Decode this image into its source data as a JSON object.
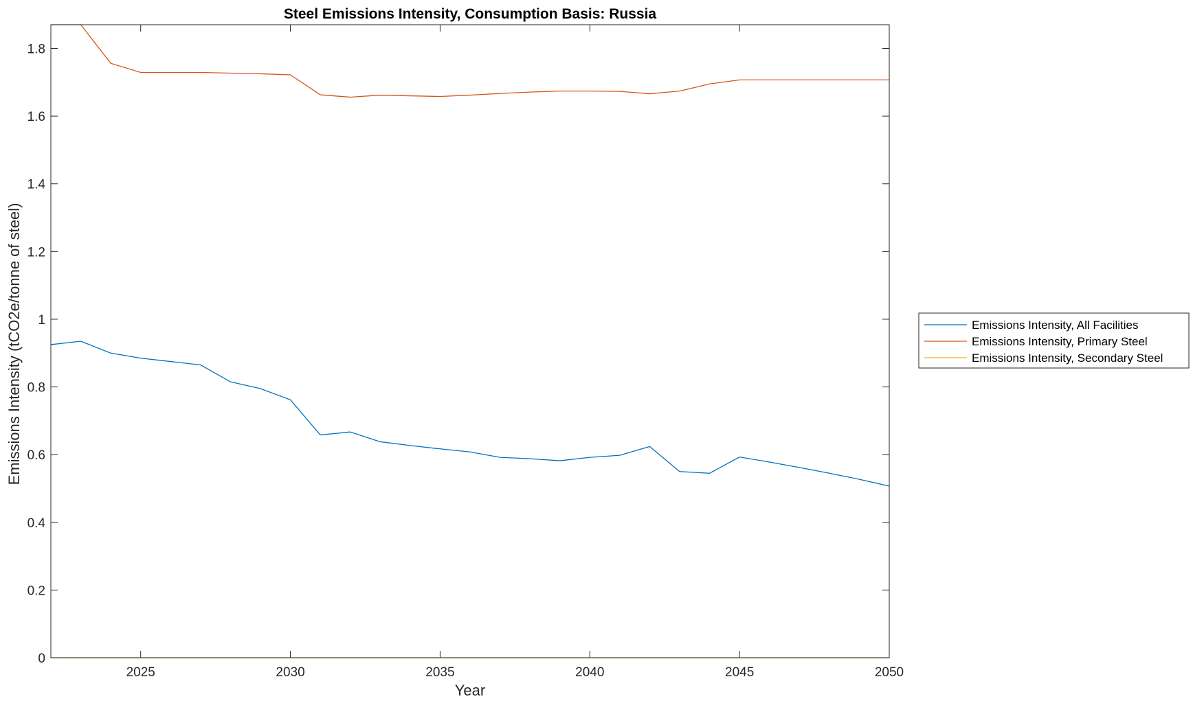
{
  "chart_data": {
    "type": "line",
    "title": "Steel Emissions Intensity, Consumption Basis: Russia",
    "xlabel": "Year",
    "ylabel": "Emissions Intensity (tCO2e/tonne of steel)",
    "xlim": [
      2022,
      2050
    ],
    "ylim": [
      0,
      1.87
    ],
    "xticks": [
      2025,
      2030,
      2035,
      2040,
      2045,
      2050
    ],
    "yticks": [
      0,
      0.2,
      0.4,
      0.6,
      0.8,
      1,
      1.2,
      1.4,
      1.6,
      1.8
    ],
    "ytick_labels": [
      "0",
      "0.2",
      "0.4",
      "0.6",
      "0.8",
      "1",
      "1.2",
      "1.4",
      "1.6",
      "1.8"
    ],
    "grid": false,
    "legend_position": "outside-right",
    "x": [
      2022,
      2023,
      2024,
      2025,
      2026,
      2027,
      2028,
      2029,
      2030,
      2031,
      2032,
      2033,
      2034,
      2035,
      2036,
      2037,
      2038,
      2039,
      2040,
      2041,
      2042,
      2043,
      2044,
      2045,
      2046,
      2047,
      2048,
      2049,
      2050
    ],
    "series": [
      {
        "name": "Emissions Intensity, All Facilities",
        "color": "#0072BD",
        "values": [
          0.925,
          0.935,
          0.9,
          0.885,
          0.875,
          0.865,
          0.815,
          0.795,
          0.762,
          0.658,
          0.667,
          0.638,
          0.627,
          0.617,
          0.608,
          0.592,
          0.588,
          0.582,
          0.592,
          0.598,
          0.624,
          0.55,
          0.545,
          0.593,
          0.578,
          0.562,
          0.545,
          0.527,
          0.507
        ]
      },
      {
        "name": "Emissions Intensity, Primary Steel",
        "color": "#D95319",
        "values": [
          1.87,
          1.87,
          1.756,
          1.729,
          1.729,
          1.729,
          1.727,
          1.725,
          1.722,
          1.663,
          1.656,
          1.662,
          1.66,
          1.658,
          1.662,
          1.667,
          1.671,
          1.674,
          1.674,
          1.673,
          1.666,
          1.674,
          1.695,
          1.707,
          1.707,
          1.707,
          1.707,
          1.707,
          1.707
        ]
      },
      {
        "name": "Emissions Intensity, Secondary Steel",
        "color": "#EDB120",
        "values": [
          0,
          0,
          0,
          0,
          0,
          0,
          0,
          0,
          0,
          0,
          0,
          0,
          0,
          0,
          0,
          0,
          0,
          0,
          0,
          0,
          0,
          0,
          0,
          0,
          0,
          0,
          0,
          0,
          0
        ]
      }
    ]
  }
}
